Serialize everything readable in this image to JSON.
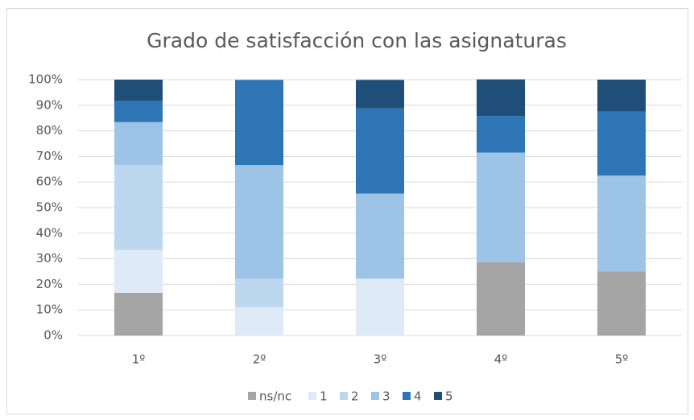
{
  "chart_data": {
    "type": "stacked_bar",
    "title": "Grado de satisfacción con las asignaturas",
    "categories": [
      "1º",
      "2º",
      "3º",
      "4º",
      "5º"
    ],
    "series": [
      {
        "name": "ns/nc",
        "color": "#a5a5a5",
        "values": [
          16.7,
          0,
          0,
          28.6,
          25
        ]
      },
      {
        "name": "1",
        "color": "#deebf7",
        "values": [
          16.7,
          11.1,
          22.2,
          0,
          0
        ]
      },
      {
        "name": "2",
        "color": "#bdd7ee",
        "values": [
          33.3,
          11.1,
          0,
          0,
          0
        ]
      },
      {
        "name": "3",
        "color": "#9dc3e6",
        "values": [
          16.7,
          44.4,
          33.3,
          42.9,
          37.5
        ]
      },
      {
        "name": "4",
        "color": "#2e75b6",
        "values": [
          8.3,
          33.3,
          33.3,
          14.3,
          25
        ]
      },
      {
        "name": "5",
        "color": "#1f4e79",
        "values": [
          8.3,
          0,
          11.1,
          14.3,
          12.5
        ]
      }
    ],
    "ylim": [
      0,
      100
    ],
    "yticks": [
      {
        "value": 0,
        "label": "0%"
      },
      {
        "value": 10,
        "label": "10%"
      },
      {
        "value": 20,
        "label": "20%"
      },
      {
        "value": 30,
        "label": "30%"
      },
      {
        "value": 40,
        "label": "40%"
      },
      {
        "value": 50,
        "label": "50%"
      },
      {
        "value": 60,
        "label": "60%"
      },
      {
        "value": 70,
        "label": "70%"
      },
      {
        "value": 80,
        "label": "80%"
      },
      {
        "value": 90,
        "label": "90%"
      },
      {
        "value": 100,
        "label": "100%"
      }
    ],
    "grid": true,
    "legend": "bottom"
  }
}
